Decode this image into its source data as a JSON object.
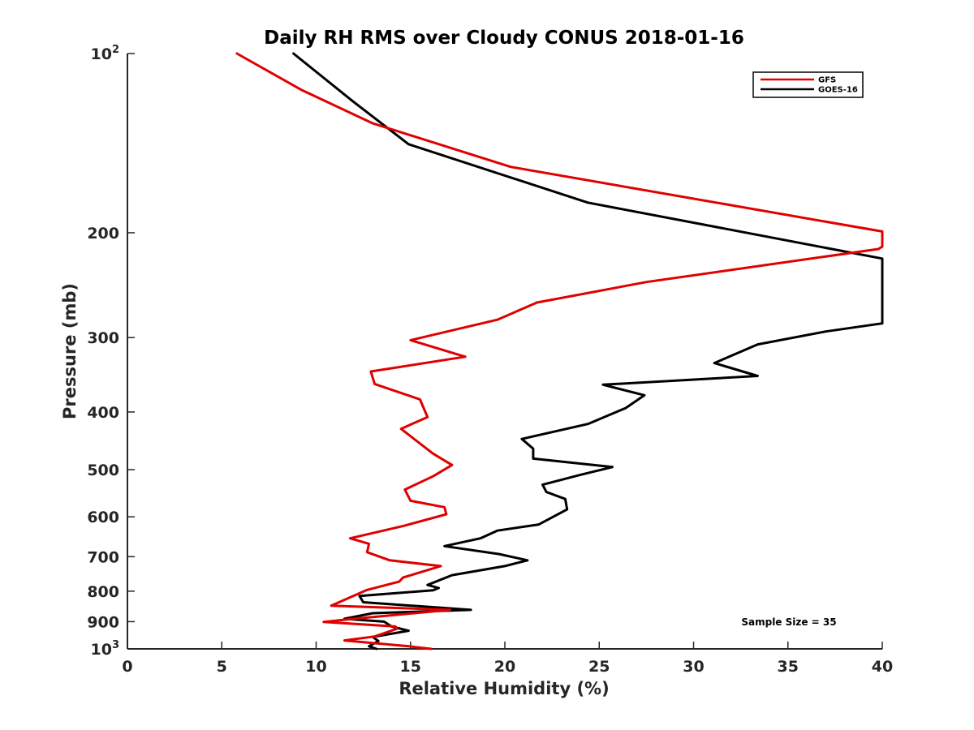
{
  "chart_data": {
    "type": "line",
    "title": "Daily RH RMS over Cloudy CONUS 2018-01-16",
    "xlabel": "Relative Humidity (%)",
    "ylabel": "Pressure (mb)",
    "xlim": [
      0,
      40
    ],
    "ylim": [
      100,
      1000
    ],
    "y_scale": "log",
    "y_reversed": true,
    "grid": false,
    "legend_position": "top-right",
    "x_ticks": [
      "0",
      "5",
      "10",
      "15",
      "20",
      "25",
      "30",
      "35",
      "40"
    ],
    "y_ticks": [
      {
        "value": 100,
        "base": "10",
        "exp": "2"
      },
      {
        "value": 200,
        "label": "200"
      },
      {
        "value": 300,
        "label": "300"
      },
      {
        "value": 400,
        "label": "400"
      },
      {
        "value": 500,
        "label": "500"
      },
      {
        "value": 600,
        "label": "600"
      },
      {
        "value": 700,
        "label": "700"
      },
      {
        "value": 800,
        "label": "800"
      },
      {
        "value": 900,
        "label": "900"
      },
      {
        "value": 1000,
        "base": "10",
        "exp": "3"
      }
    ],
    "annotation": "Sample Size = 35",
    "series": [
      {
        "name": "GFS",
        "color": "#e00000",
        "points": [
          [
            5.8,
            100
          ],
          [
            9.2,
            115
          ],
          [
            13.0,
            131
          ],
          [
            20.3,
            155
          ],
          [
            40.0,
            199
          ],
          [
            40.0,
            211
          ],
          [
            39.8,
            213
          ],
          [
            27.5,
            242
          ],
          [
            21.7,
            262
          ],
          [
            19.6,
            280
          ],
          [
            15.0,
            303
          ],
          [
            17.9,
            323
          ],
          [
            12.9,
            342
          ],
          [
            13.1,
            359
          ],
          [
            15.5,
            381
          ],
          [
            15.9,
            408
          ],
          [
            14.5,
            427
          ],
          [
            16.2,
            470
          ],
          [
            17.2,
            491
          ],
          [
            16.2,
            513
          ],
          [
            14.7,
            540
          ],
          [
            15.0,
            564
          ],
          [
            16.8,
            578
          ],
          [
            16.9,
            594
          ],
          [
            14.6,
            622
          ],
          [
            11.8,
            652
          ],
          [
            12.8,
            666
          ],
          [
            12.7,
            688
          ],
          [
            13.9,
            710
          ],
          [
            16.6,
            726
          ],
          [
            14.6,
            759
          ],
          [
            14.4,
            771
          ],
          [
            12.7,
            796
          ],
          [
            11.7,
            822
          ],
          [
            10.8,
            846
          ],
          [
            17.1,
            860
          ],
          [
            12.0,
            890
          ],
          [
            10.4,
            901
          ],
          [
            14.2,
            917
          ],
          [
            14.3,
            925
          ],
          [
            13.1,
            953
          ],
          [
            11.5,
            968
          ],
          [
            14.9,
            990
          ],
          [
            16.1,
            1000
          ]
        ]
      },
      {
        "name": "GOES-16",
        "color": "#000000",
        "points": [
          [
            8.8,
            100
          ],
          [
            11.9,
            120
          ],
          [
            14.9,
            142
          ],
          [
            24.4,
            178
          ],
          [
            40.0,
            221
          ],
          [
            40.0,
            284
          ],
          [
            37.0,
            293
          ],
          [
            33.4,
            308
          ],
          [
            31.1,
            331
          ],
          [
            33.4,
            348
          ],
          [
            25.2,
            360
          ],
          [
            27.4,
            375
          ],
          [
            26.4,
            394
          ],
          [
            24.4,
            419
          ],
          [
            20.9,
            444
          ],
          [
            21.5,
            461
          ],
          [
            21.5,
            479
          ],
          [
            25.7,
            495
          ],
          [
            24.0,
            510
          ],
          [
            22.0,
            530
          ],
          [
            22.2,
            545
          ],
          [
            23.2,
            560
          ],
          [
            23.3,
            583
          ],
          [
            21.8,
            618
          ],
          [
            19.6,
            633
          ],
          [
            18.7,
            652
          ],
          [
            16.8,
            672
          ],
          [
            19.7,
            693
          ],
          [
            21.2,
            710
          ],
          [
            20.0,
            726
          ],
          [
            17.2,
            752
          ],
          [
            15.9,
            781
          ],
          [
            16.5,
            790
          ],
          [
            16.2,
            797
          ],
          [
            12.3,
            815
          ],
          [
            12.5,
            835
          ],
          [
            18.2,
            860
          ],
          [
            13.0,
            871
          ],
          [
            11.5,
            890
          ],
          [
            13.6,
            900
          ],
          [
            14.0,
            917
          ],
          [
            14.9,
            932
          ],
          [
            13.0,
            955
          ],
          [
            13.3,
            970
          ],
          [
            12.8,
            990
          ],
          [
            13.2,
            1000
          ]
        ]
      }
    ]
  }
}
